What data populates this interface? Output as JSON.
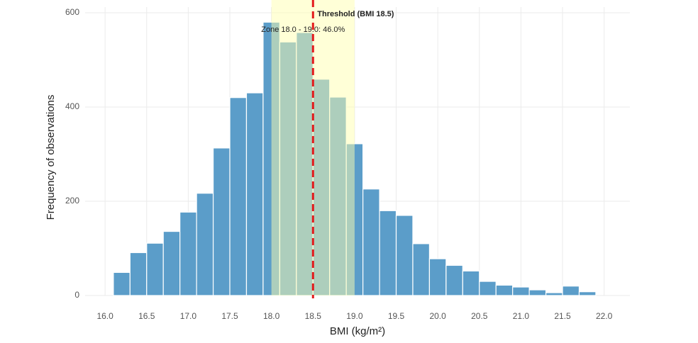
{
  "chart_data": {
    "type": "histogram",
    "x_label": "BMI (kg/m²)",
    "y_label": "Frequency of observations",
    "bins": [
      16.1,
      16.3,
      16.5,
      16.7,
      16.9,
      17.1,
      17.3,
      17.5,
      17.7,
      17.9,
      18.1,
      18.3,
      18.5,
      18.7,
      18.9,
      19.1,
      19.3,
      19.5,
      19.7,
      19.9,
      20.1,
      20.3,
      20.5,
      20.7,
      20.9,
      21.1,
      21.3,
      21.5,
      21.7,
      21.9
    ],
    "values": [
      49,
      91,
      111,
      136,
      177,
      217,
      313,
      420,
      430,
      580,
      538,
      558,
      459,
      421,
      322,
      226,
      180,
      170,
      110,
      78,
      64,
      52,
      30,
      22,
      18,
      12,
      6,
      20,
      8
    ],
    "color": "#5b9dc9",
    "zone": [
      18.0,
      19.0
    ],
    "zone_color": "#ffffb0",
    "zone_label": "Zone 18.0 - 19.0: 46.0%",
    "threshold": 18.5,
    "threshold_color": "#e31a1c",
    "threshold_label": "Threshold (BMI 18.5)",
    "xlim": [
      15.76,
      22.31
    ],
    "ylim": [
      0,
      612
    ],
    "xticks": [
      {
        "value": 16.0,
        "label": "16.0"
      },
      {
        "value": 16.5,
        "label": "16.5"
      },
      {
        "value": 17.0,
        "label": "17.0"
      },
      {
        "value": 17.5,
        "label": "17.5"
      },
      {
        "value": 18.0,
        "label": "18.0"
      },
      {
        "value": 18.5,
        "label": "18.5"
      },
      {
        "value": 19.0,
        "label": "19.0"
      },
      {
        "value": 19.5,
        "label": "19.5"
      },
      {
        "value": 20.0,
        "label": "20.0"
      },
      {
        "value": 20.5,
        "label": "20.5"
      },
      {
        "value": 21.0,
        "label": "21.0"
      },
      {
        "value": 21.5,
        "label": "21.5"
      },
      {
        "value": 22.0,
        "label": "22.0"
      }
    ],
    "yticks": [
      0,
      200,
      400,
      600
    ],
    "grid": true
  }
}
